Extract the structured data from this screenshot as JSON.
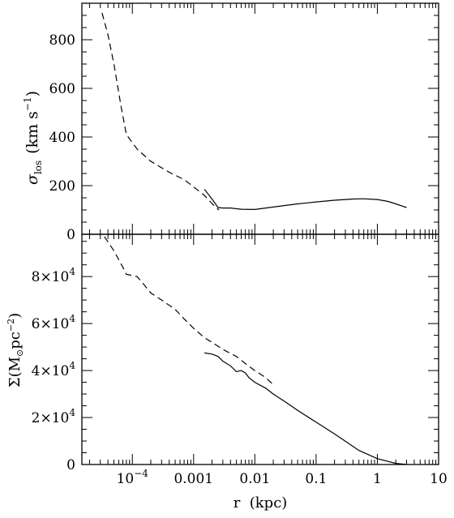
{
  "chart_data": [
    {
      "type": "line",
      "panel": "top",
      "ylabel_symbol": "σ",
      "ylabel_sub": "los",
      "ylabel_units": "(km s",
      "ylabel_sup": "−1",
      "ylabel_close": ")",
      "xscale": "log",
      "xlim": [
        1.5e-05,
        10
      ],
      "ylim": [
        0,
        950
      ],
      "yticks": [
        {
          "value": 0,
          "label": "0"
        },
        {
          "value": 200,
          "label": "200"
        },
        {
          "value": 400,
          "label": "400"
        },
        {
          "value": 600,
          "label": "600"
        },
        {
          "value": 800,
          "label": "800"
        }
      ],
      "series": [
        {
          "style": "dashed",
          "x": [
            3.2e-05,
            4e-05,
            5e-05,
            6.5e-05,
            8e-05,
            0.00012,
            0.0002,
            0.0004,
            0.0007,
            0.001,
            0.0015,
            0.0022,
            0.0026
          ],
          "y": [
            910,
            820,
            700,
            530,
            410,
            350,
            300,
            255,
            225,
            195,
            160,
            115,
            100
          ]
        },
        {
          "style": "solid",
          "x": [
            0.0015,
            0.002,
            0.0025,
            0.003,
            0.004,
            0.006,
            0.01,
            0.015,
            0.02,
            0.03,
            0.05,
            0.1,
            0.2,
            0.4,
            0.6,
            1,
            1.5,
            2,
            3
          ],
          "y": [
            185,
            145,
            110,
            108,
            108,
            103,
            102,
            108,
            112,
            118,
            125,
            133,
            140,
            145,
            146,
            143,
            135,
            125,
            110
          ]
        }
      ]
    },
    {
      "type": "line",
      "panel": "bottom",
      "ylabel": "Σ(M",
      "ylabel_sun": "⊙",
      "ylabel_units": "pc",
      "ylabel_sup": "−2",
      "ylabel_close": ")",
      "xlabel": "r  (kpc)",
      "xscale": "log",
      "xlim": [
        1.5e-05,
        10
      ],
      "ylim": [
        0,
        98000
      ],
      "xticks": [
        {
          "value": 0.0001,
          "mant": "10",
          "exp": "−4"
        },
        {
          "value": 0.001,
          "label": "0.001"
        },
        {
          "value": 0.01,
          "label": "0.01"
        },
        {
          "value": 0.1,
          "label": "0.1"
        },
        {
          "value": 1,
          "label": "1"
        },
        {
          "value": 10,
          "label": "10"
        }
      ],
      "yticks": [
        {
          "value": 0,
          "mant": "0"
        },
        {
          "value": 20000,
          "mant": "2×10",
          "exp": "4"
        },
        {
          "value": 40000,
          "mant": "4×10",
          "exp": "4"
        },
        {
          "value": 60000,
          "mant": "6×10",
          "exp": "4"
        },
        {
          "value": 80000,
          "mant": "8×10",
          "exp": "4"
        }
      ],
      "series": [
        {
          "style": "dashed",
          "x": [
            3.5e-05,
            5e-05,
            7e-05,
            8e-05,
            0.00012,
            0.00015,
            0.0002,
            0.0003,
            0.0005,
            0.0007,
            0.001,
            0.0015,
            0.002,
            0.003,
            0.005,
            0.007,
            0.01,
            0.015,
            0.02
          ],
          "y": [
            97000,
            91000,
            84000,
            81000,
            80000,
            77000,
            73000,
            70000,
            66000,
            62000,
            58000,
            54000,
            52000,
            49000,
            46000,
            43000,
            40000,
            37000,
            34000
          ]
        },
        {
          "style": "solid",
          "x": [
            0.0015,
            0.002,
            0.0025,
            0.003,
            0.004,
            0.005,
            0.006,
            0.007,
            0.008,
            0.01,
            0.015,
            0.02,
            0.03,
            0.05,
            0.1,
            0.2,
            0.5,
            1,
            2,
            3
          ],
          "y": [
            47500,
            47000,
            46000,
            44000,
            42000,
            39500,
            40000,
            39000,
            37000,
            35000,
            32500,
            30000,
            27000,
            23000,
            18000,
            13000,
            6000,
            2500,
            500,
            0
          ]
        }
      ]
    }
  ]
}
